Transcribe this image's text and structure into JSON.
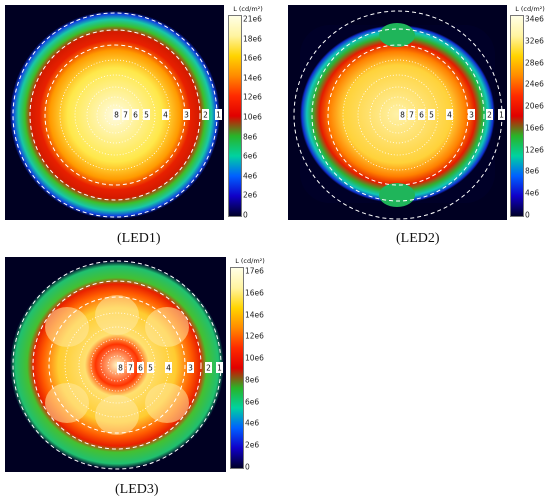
{
  "unit_label": "L (cd/m²)",
  "zone_labels": [
    "8",
    "7",
    "6",
    "5",
    "4",
    "3",
    "2",
    "1"
  ],
  "panels": [
    {
      "caption": "(LED1)",
      "ticks": [
        "21e6",
        "18e6",
        "16e6",
        "14e6",
        "12e6",
        "10e6",
        "8e6",
        "6e6",
        "4e6",
        "2e6",
        "0"
      ]
    },
    {
      "caption": "(LED2)",
      "ticks": [
        "34e6",
        "32e6",
        "28e6",
        "24e6",
        "20e6",
        "16e6",
        "12e6",
        "8e6",
        "4e6",
        "0"
      ]
    },
    {
      "caption": "(LED3)",
      "ticks": [
        "17e6",
        "16e6",
        "14e6",
        "12e6",
        "10e6",
        "8e6",
        "6e6",
        "4e6",
        "2e6",
        "0"
      ]
    }
  ],
  "colormap": [
    "#ffffe6",
    "#fff4a0",
    "#ffd400",
    "#ff8a00",
    "#ff2a00",
    "#e00000",
    "#28b428",
    "#00d2a0",
    "#0060ff",
    "#1000c8",
    "#000028"
  ]
}
